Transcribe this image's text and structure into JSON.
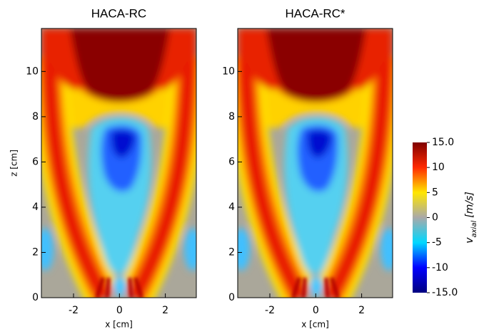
{
  "chart_data": [
    {
      "type": "heatmap",
      "title": "HACA-RC",
      "xlabel": "x [cm]",
      "ylabel": "z [cm]",
      "xlim": [
        -3.4,
        3.35
      ],
      "ylim": [
        0,
        11.9
      ],
      "xticks": [
        -2,
        0,
        2
      ],
      "yticks": [
        0,
        2,
        4,
        6,
        8,
        10
      ]
    },
    {
      "type": "heatmap",
      "title": "HACA-RC*",
      "xlabel": "x [cm]",
      "xlim": [
        -3.4,
        3.35
      ],
      "ylim": [
        0,
        11.9
      ],
      "xticks": [
        -2,
        0,
        2
      ],
      "yticks": [
        0,
        2,
        4,
        6,
        8,
        10
      ]
    }
  ],
  "colorbar": {
    "label": "v",
    "label_sub": "axial",
    "label_unit": "[m/s]",
    "lim": [
      -15,
      15
    ],
    "colors": [
      "#00007f",
      "#0000ff",
      "#00d8ff",
      "#a9a9a9",
      "#ffe600",
      "#ff2a00",
      "#7f0000"
    ],
    "ticks": [
      {
        "value": 15,
        "label": "15.0"
      },
      10,
      5,
      0,
      -5,
      -10,
      {
        "value": -15,
        "label": "-15.0"
      }
    ]
  }
}
